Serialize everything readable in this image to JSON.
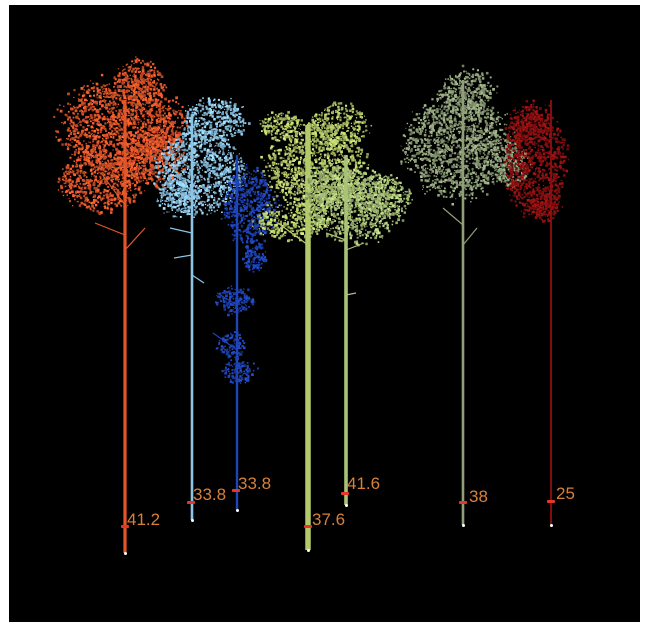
{
  "scene": {
    "background": "#000000",
    "label_color": "#d6813a",
    "marker_color": "#e8352a",
    "trees": [
      {
        "name": "tree-orange",
        "color": "#e2562a",
        "dbh": "41.2"
      },
      {
        "name": "tree-light-blue",
        "color": "#8cc4e6",
        "dbh": "33.8"
      },
      {
        "name": "tree-dark-blue",
        "color": "#1f44b8",
        "dbh": "33.8"
      },
      {
        "name": "tree-lime-front",
        "color": "#b3c96a",
        "dbh": "37.6"
      },
      {
        "name": "tree-lime-back",
        "color": "#a9c278",
        "dbh": "41.6"
      },
      {
        "name": "tree-sage",
        "color": "#8fa079",
        "dbh": "38"
      },
      {
        "name": "tree-dark-red",
        "color": "#8e1010",
        "dbh": "25"
      }
    ]
  }
}
